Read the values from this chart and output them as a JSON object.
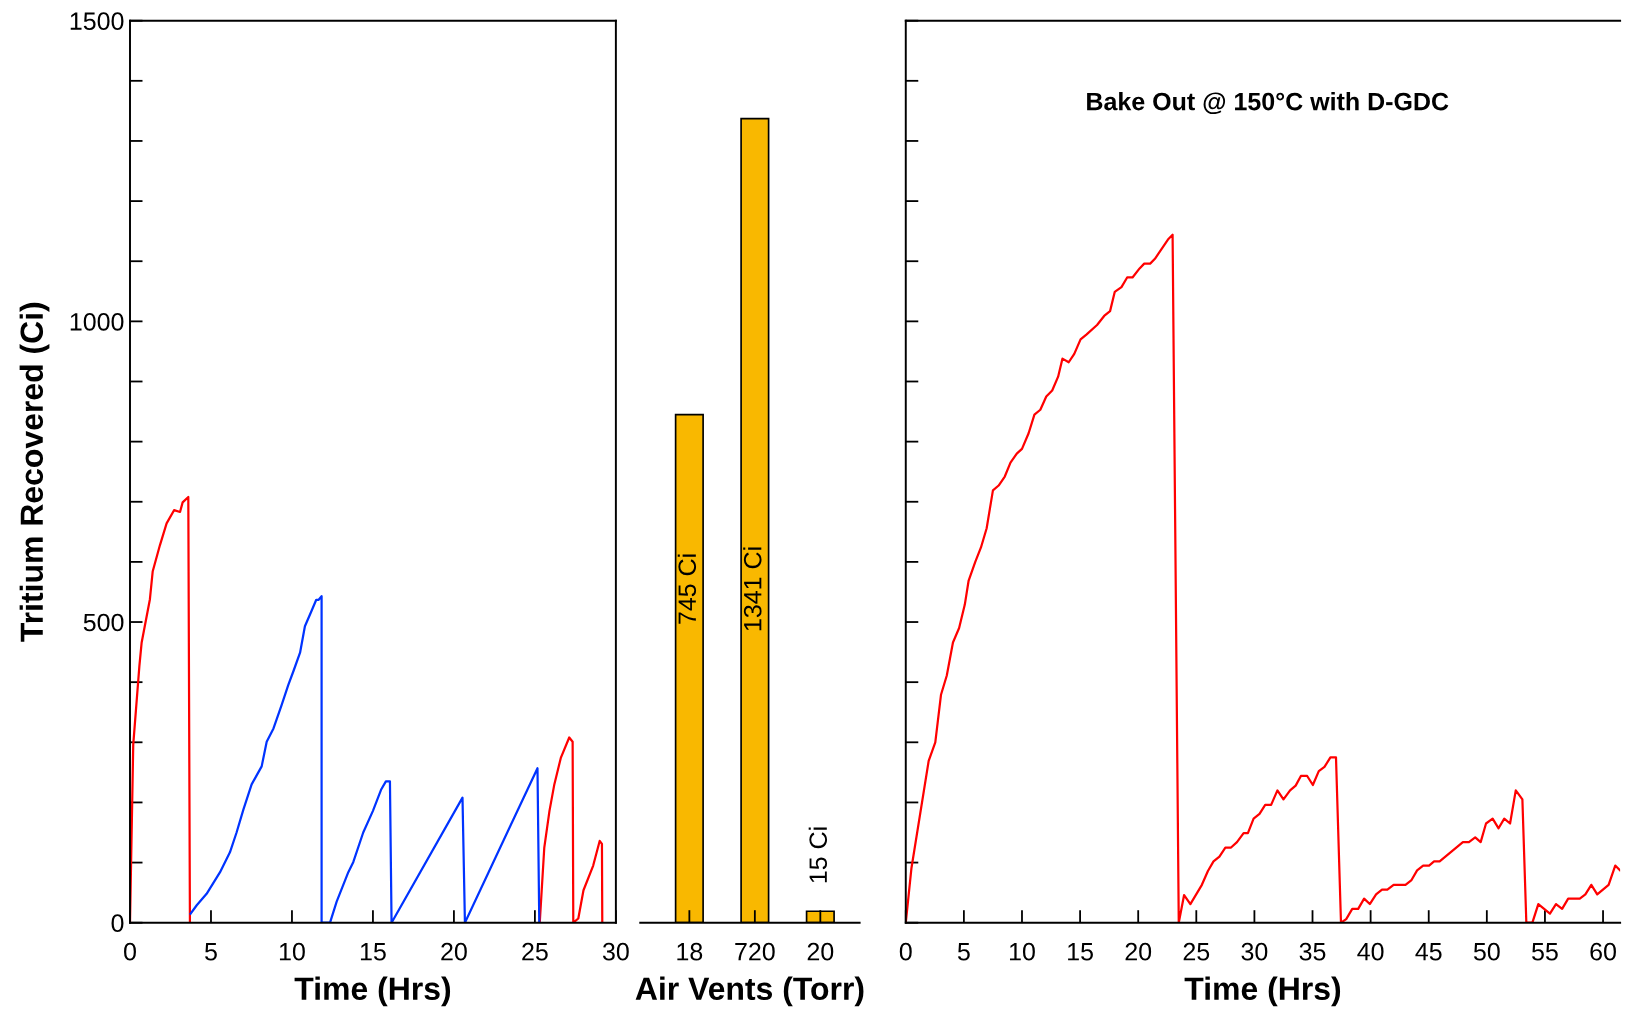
{
  "chart_data": [
    {
      "type": "line",
      "xlabel": "Time (Hrs)",
      "ylabel": "Tritium Recovered (Ci)",
      "xlim": [
        0,
        30
      ],
      "ylim": [
        0,
        1500
      ],
      "xticks": [
        0,
        5,
        10,
        15,
        20,
        25,
        30
      ],
      "yticks": [
        0,
        {
          "value": 100,
          "label": null
        },
        {
          "value": 200,
          "label": null
        },
        {
          "value": 300,
          "label": null
        },
        {
          "value": 400,
          "label": null
        },
        500,
        {
          "value": 600,
          "label": null
        },
        {
          "value": 700,
          "label": null
        },
        {
          "value": 800,
          "label": null
        },
        {
          "value": 900,
          "label": null
        },
        1000,
        {
          "value": 1100,
          "label": null
        },
        {
          "value": 1200,
          "label": null
        },
        {
          "value": 1300,
          "label": null
        },
        {
          "value": 1400,
          "label": null
        },
        1500
      ],
      "grid": false,
      "legend": false,
      "marker": "none",
      "line_style": "solid",
      "series": [
        {
          "color": "#ff0000",
          "x": [
            0,
            0.2,
            0.58,
            0.72,
            1.23,
            1.4,
            1.85,
            2.26,
            2.72,
            3.09,
            3.25,
            3.6,
            3.7,
            14,
            25.3,
            25.58,
            25.9,
            26.2,
            26.6,
            27.12,
            27.33,
            27.37,
            27.68,
            28.0,
            28.6,
            29.0,
            29.14,
            29.16
          ],
          "values": [
            0,
            296,
            427,
            466,
            538,
            584,
            628,
            664,
            686,
            683,
            699,
            708,
            0,
            null,
            0,
            125,
            186,
            230,
            274,
            308,
            301,
            0,
            7,
            54,
            95,
            136,
            131,
            0
          ]
        },
        {
          "color": "#0033ff",
          "x": [
            3.74,
            4.12,
            4.73,
            5.56,
            6.17,
            6.58,
            7.0,
            7.51,
            8.13,
            8.44,
            8.86,
            9.36,
            9.77,
            10.1,
            10.5,
            10.8,
            11.2,
            11.5,
            11.65,
            11.83,
            11.83,
            12.35,
            12.76,
            13.48,
            13.79,
            14.4,
            15.0,
            15.5,
            15.8,
            16.05,
            16.15,
            20.53,
            20.68,
            25.16,
            25.27
          ],
          "values": [
            15,
            29,
            48,
            84,
            117,
            150,
            188,
            230,
            260,
            301,
            323,
            362,
            395,
            419,
            449,
            493,
            518,
            537,
            537,
            543,
            0,
            0,
            35,
            84,
            101,
            150,
            186,
            221,
            235,
            235,
            0,
            208,
            0,
            257,
            0
          ]
        }
      ]
    },
    {
      "type": "bar",
      "xlabel": "Air Vents (Torr)",
      "categories": [
        "18",
        "720",
        "20"
      ],
      "values": [
        845,
        1337,
        19
      ],
      "color": "#f9b800",
      "ylim": [
        0,
        1500
      ],
      "tick_labels": "x",
      "grid": false,
      "legend": false,
      "annotations": [
        "745 Ci",
        "1341 Ci",
        "15 Ci"
      ]
    },
    {
      "type": "line",
      "title": "Bake Out @ 150°C with D-GDC",
      "xlabel": "Time (Hrs)",
      "xlim": [
        0,
        61.47
      ],
      "ylim": [
        0,
        1500
      ],
      "xticks": [
        0,
        5,
        10,
        15,
        20,
        25,
        30,
        35,
        40,
        45,
        50,
        55,
        60
      ],
      "yticks": [
        {
          "value": 0,
          "label": null
        },
        {
          "value": 100,
          "label": null
        },
        {
          "value": 200,
          "label": null
        },
        {
          "value": 300,
          "label": null
        },
        {
          "value": 400,
          "label": null
        },
        {
          "value": 500,
          "label": null
        },
        {
          "value": 600,
          "label": null
        },
        {
          "value": 700,
          "label": null
        },
        {
          "value": 800,
          "label": null
        },
        {
          "value": 900,
          "label": null
        },
        {
          "value": 1000,
          "label": null
        },
        {
          "value": 1100,
          "label": null
        },
        {
          "value": 1200,
          "label": null
        },
        {
          "value": 1300,
          "label": null
        },
        {
          "value": 1400,
          "label": null
        },
        {
          "value": 1500,
          "label": null
        }
      ],
      "tick_labels": "x",
      "grid": false,
      "legend": false,
      "marker": "none",
      "line_style": "solid",
      "series": [
        {
          "color": "#ff0000",
          "x": [
            0,
            0.49,
            1.97,
            2.54,
            3.03,
            3.53,
            4.06,
            4.59,
            5.08,
            5.41,
            5.98,
            6.47,
            6.96,
            7.5,
            7.99,
            8.52,
            9.01,
            9.55,
            10.0,
            10.57,
            11.07,
            11.58,
            12.09,
            12.6,
            13.11,
            13.48,
            14.02,
            14.5,
            15.04,
            15.54,
            16.46,
            17.07,
            17.58,
            17.98,
            18.56,
            19.05,
            19.51,
            20.12,
            20.52,
            21.03,
            21.44,
            22.56,
            22.96,
            23.49,
            23.95,
            24.49,
            25.48,
            26.0,
            26.48,
            26.99,
            27.5,
            27.99,
            28.5,
            29.07,
            29.44,
            29.93,
            30.44,
            30.93,
            31.44,
            31.98,
            32.5,
            33.07,
            33.55,
            34.0,
            34.54,
            35.03,
            35.54,
            36.03,
            36.54,
            37.02,
            37.45,
            37.9,
            38.42,
            38.93,
            39.44,
            39.93,
            40.47,
            40.98,
            41.44,
            41.98,
            43.0,
            43.52,
            44.0,
            44.52,
            45.03,
            45.46,
            45.94,
            47.94,
            48.46,
            49.0,
            49.47,
            49.93,
            50.5,
            51.01,
            51.5,
            52.0,
            52.49,
            53.06,
            53.4,
            53.92,
            54.43,
            55.43,
            55.95,
            56.48,
            57.0,
            58.0,
            58.48,
            58.99,
            59.5,
            60.48,
            61.05,
            61.47
          ],
          "values": [
            0,
            91,
            269,
            300,
            379,
            411,
            466,
            490,
            529,
            569,
            600,
            624,
            656,
            719,
            727,
            742,
            765,
            780,
            788,
            814,
            845,
            853,
            875,
            885,
            908,
            938,
            932,
            946,
            970,
            978,
            994,
            1009,
            1017,
            1049,
            1057,
            1073,
            1073,
            1088,
            1096,
            1096,
            1104,
            1136,
            1144,
            0,
            46,
            31,
            63,
            86,
            102,
            110,
            125,
            125,
            134,
            149,
            149,
            173,
            181,
            196,
            196,
            220,
            205,
            220,
            228,
            244,
            244,
            229,
            252,
            259,
            275,
            275,
            0,
            6,
            23,
            23,
            40,
            31,
            47,
            55,
            55,
            63,
            63,
            71,
            87,
            95,
            95,
            102,
            102,
            134,
            134,
            142,
            134,
            165,
            173,
            157,
            173,
            165,
            220,
            205,
            0,
            0,
            31,
            15,
            31,
            23,
            40,
            40,
            47,
            63,
            47,
            63,
            95,
            87
          ]
        }
      ]
    }
  ]
}
